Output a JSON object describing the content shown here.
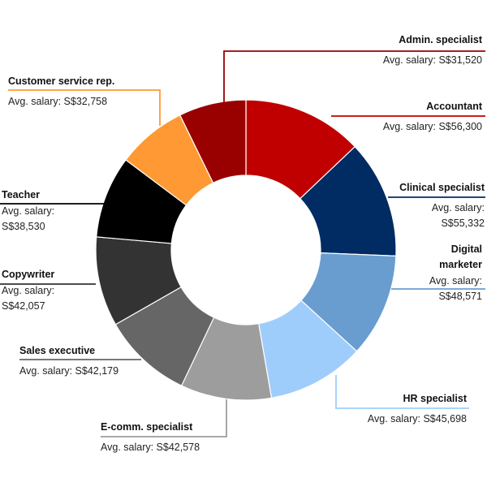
{
  "chart_data": {
    "type": "pie",
    "variant": "donut",
    "legend": "callout labels around the ring",
    "salary_prefix": "Avg. salary: ",
    "slices": [
      {
        "name": "Accountant",
        "name_lines": [
          "Accountant"
        ],
        "salary": "S$56,300",
        "salary_lines": [
          "Avg. salary: S$56,300"
        ],
        "value": 56300,
        "color": "#c00000"
      },
      {
        "name": "Clinical specialist",
        "name_lines": [
          "Clinical specialist"
        ],
        "salary": "S$55,332",
        "salary_lines": [
          "Avg. salary:",
          "S$55,332"
        ],
        "value": 55332,
        "color": "#002b63"
      },
      {
        "name": "Digital marketer",
        "name_lines": [
          "Digital",
          "marketer"
        ],
        "salary": "S$48,571",
        "salary_lines": [
          "Avg. salary:",
          "S$48,571"
        ],
        "value": 48571,
        "color": "#699dd0"
      },
      {
        "name": "HR specialist",
        "name_lines": [
          "HR specialist"
        ],
        "salary": "S$45,698",
        "salary_lines": [
          "Avg. salary: S$45,698"
        ],
        "value": 45698,
        "color": "#9fcdfb"
      },
      {
        "name": "E-comm. specialist",
        "name_lines": [
          "E-comm. specialist"
        ],
        "salary": "S$42,578",
        "salary_lines": [
          "Avg. salary: S$42,578"
        ],
        "value": 42578,
        "color": "#9d9d9d"
      },
      {
        "name": "Sales executive",
        "name_lines": [
          "Sales executive"
        ],
        "salary": "S$42,179",
        "salary_lines": [
          "Avg. salary: S$42,179"
        ],
        "value": 42179,
        "color": "#666666"
      },
      {
        "name": "Copywriter",
        "name_lines": [
          "Copywriter"
        ],
        "salary": "S$42,057",
        "salary_lines": [
          "Avg. salary:",
          "S$42,057"
        ],
        "value": 42057,
        "color": "#333333"
      },
      {
        "name": "Teacher",
        "name_lines": [
          "Teacher"
        ],
        "salary": "S$38,530",
        "salary_lines": [
          "Avg. salary:",
          "S$38,530"
        ],
        "value": 38530,
        "color": "#000000"
      },
      {
        "name": "Customer service rep.",
        "name_lines": [
          "Customer service rep."
        ],
        "salary": "S$32,758",
        "salary_lines": [
          "Avg. salary: S$32,758"
        ],
        "value": 32758,
        "color": "#ff9933"
      },
      {
        "name": "Admin. specialist",
        "name_lines": [
          "Admin. specialist"
        ],
        "salary": "S$31,520",
        "salary_lines": [
          "Avg. salary: S$31,520"
        ],
        "value": 31520,
        "color": "#990000"
      }
    ]
  }
}
